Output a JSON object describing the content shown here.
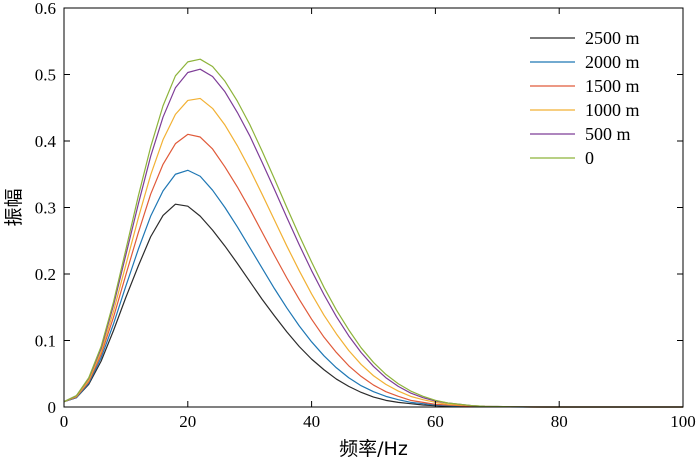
{
  "chart_data": {
    "type": "line",
    "xlabel": "频率/Hz",
    "ylabel": "振幅",
    "xlim": [
      0,
      100
    ],
    "ylim": [
      0,
      0.6
    ],
    "xticks": [
      0,
      20,
      40,
      60,
      80,
      100
    ],
    "yticks": [
      0,
      0.1,
      0.2,
      0.3,
      0.4,
      0.5,
      0.6
    ],
    "x_tick_labels": [
      "0",
      "20",
      "40",
      "60",
      "80",
      "100"
    ],
    "y_tick_labels": [
      "0",
      "0.1",
      "0.2",
      "0.3",
      "0.4",
      "0.5",
      "0.6"
    ],
    "grid": false,
    "legend_position": "top-right",
    "x": [
      0,
      2,
      4,
      6,
      8,
      10,
      12,
      14,
      16,
      18,
      20,
      22,
      24,
      26,
      28,
      30,
      32,
      34,
      36,
      38,
      40,
      42,
      44,
      46,
      48,
      50,
      52,
      54,
      56,
      58,
      60,
      62,
      64,
      66,
      68,
      70,
      72,
      74,
      76,
      78,
      80,
      82,
      84,
      86,
      88,
      90,
      92,
      94,
      96,
      98,
      100
    ],
    "series": [
      {
        "name": "2500 m",
        "color": "#2b2b2b",
        "values": [
          0.008,
          0.014,
          0.034,
          0.069,
          0.115,
          0.165,
          0.212,
          0.256,
          0.288,
          0.305,
          0.302,
          0.287,
          0.266,
          0.242,
          0.216,
          0.189,
          0.162,
          0.137,
          0.113,
          0.091,
          0.072,
          0.056,
          0.042,
          0.031,
          0.022,
          0.015,
          0.01,
          0.007,
          0.005,
          0.003,
          0.002,
          0.001,
          0.001,
          0.0005,
          0.0003,
          0.0002,
          0.0001,
          0.0001,
          0,
          0,
          0,
          0,
          0,
          0,
          0,
          0,
          0,
          0,
          0,
          0,
          0
        ]
      },
      {
        "name": "2000 m",
        "color": "#1f77b4",
        "values": [
          0.008,
          0.014,
          0.036,
          0.074,
          0.125,
          0.182,
          0.237,
          0.287,
          0.325,
          0.35,
          0.356,
          0.347,
          0.326,
          0.3,
          0.271,
          0.24,
          0.209,
          0.178,
          0.149,
          0.122,
          0.098,
          0.077,
          0.059,
          0.044,
          0.032,
          0.023,
          0.016,
          0.011,
          0.007,
          0.005,
          0.003,
          0.002,
          0.001,
          0.0006,
          0.0004,
          0.0002,
          0.0001,
          0,
          0,
          0,
          0,
          0,
          0,
          0,
          0,
          0,
          0,
          0,
          0,
          0,
          0
        ]
      },
      {
        "name": "1500 m",
        "color": "#e05a3a",
        "values": [
          0.008,
          0.015,
          0.038,
          0.079,
          0.135,
          0.199,
          0.262,
          0.32,
          0.365,
          0.396,
          0.41,
          0.406,
          0.388,
          0.361,
          0.331,
          0.298,
          0.263,
          0.228,
          0.194,
          0.162,
          0.132,
          0.105,
          0.082,
          0.062,
          0.046,
          0.033,
          0.023,
          0.016,
          0.01,
          0.007,
          0.004,
          0.003,
          0.002,
          0.001,
          0.0006,
          0.0003,
          0.0002,
          0.0001,
          0,
          0,
          0,
          0,
          0,
          0,
          0,
          0,
          0,
          0,
          0,
          0,
          0
        ]
      },
      {
        "name": "1000 m",
        "color": "#f2b134",
        "values": [
          0.008,
          0.016,
          0.04,
          0.083,
          0.144,
          0.214,
          0.284,
          0.349,
          0.402,
          0.44,
          0.461,
          0.464,
          0.449,
          0.424,
          0.393,
          0.358,
          0.32,
          0.281,
          0.242,
          0.205,
          0.17,
          0.138,
          0.11,
          0.085,
          0.064,
          0.047,
          0.034,
          0.024,
          0.016,
          0.011,
          0.007,
          0.004,
          0.003,
          0.002,
          0.001,
          0.0005,
          0.0003,
          0.0001,
          0,
          0,
          0,
          0,
          0,
          0,
          0,
          0,
          0,
          0,
          0,
          0,
          0
        ]
      },
      {
        "name": "500 m",
        "color": "#7e3d97",
        "values": [
          0.008,
          0.017,
          0.043,
          0.088,
          0.153,
          0.229,
          0.305,
          0.377,
          0.436,
          0.48,
          0.503,
          0.508,
          0.497,
          0.474,
          0.443,
          0.408,
          0.368,
          0.327,
          0.285,
          0.244,
          0.205,
          0.169,
          0.136,
          0.107,
          0.082,
          0.061,
          0.044,
          0.031,
          0.021,
          0.014,
          0.009,
          0.006,
          0.004,
          0.002,
          0.001,
          0.0007,
          0.0004,
          0.0002,
          0.0001,
          0,
          0,
          0,
          0,
          0,
          0,
          0,
          0,
          0,
          0,
          0,
          0
        ]
      },
      {
        "name": "0",
        "color": "#8db33a",
        "values": [
          0.008,
          0.017,
          0.044,
          0.091,
          0.158,
          0.237,
          0.317,
          0.391,
          0.453,
          0.498,
          0.519,
          0.523,
          0.512,
          0.49,
          0.46,
          0.425,
          0.385,
          0.343,
          0.3,
          0.258,
          0.218,
          0.18,
          0.146,
          0.116,
          0.089,
          0.067,
          0.049,
          0.035,
          0.024,
          0.016,
          0.01,
          0.006,
          0.004,
          0.002,
          0.001,
          0.0008,
          0.0004,
          0.0002,
          0.0001,
          0,
          0,
          0,
          0,
          0,
          0,
          0,
          0,
          0,
          0,
          0,
          0
        ]
      }
    ]
  }
}
